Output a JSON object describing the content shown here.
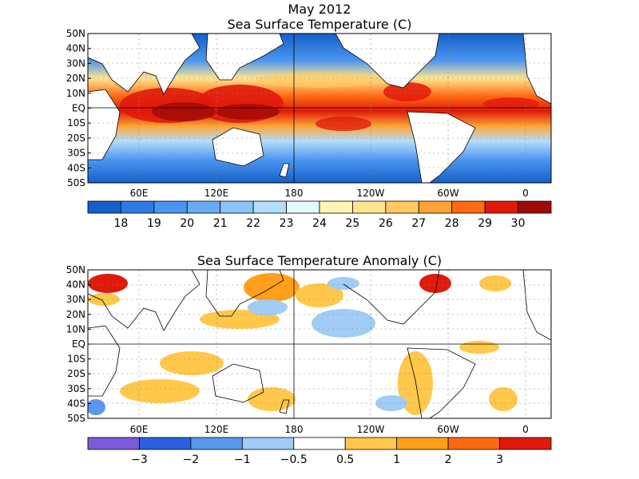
{
  "header": {
    "date": "May 2012"
  },
  "maps": [
    {
      "title": "Sea Surface Temperature (C)",
      "lat_labels": [
        "50N",
        "40N",
        "30N",
        "20N",
        "10N",
        "EQ",
        "10S",
        "20S",
        "30S",
        "40S",
        "50S"
      ],
      "lon_labels": [
        "60E",
        "120E",
        "180",
        "120W",
        "60W",
        "0"
      ],
      "colorbar": {
        "colors": [
          "#1560c8",
          "#2f7be6",
          "#4a95f0",
          "#6aabf5",
          "#8cc3f9",
          "#b4dcfc",
          "#e6f8ff",
          "#fff6b4",
          "#ffe590",
          "#ffc860",
          "#ffa432",
          "#ff6a12",
          "#e01a0a",
          "#a00a06"
        ],
        "labels": [
          "18",
          "19",
          "20",
          "21",
          "22",
          "23",
          "24",
          "25",
          "26",
          "27",
          "28",
          "29",
          "30"
        ]
      }
    },
    {
      "title": "Sea Surface Temperature Anomaly (C)",
      "lat_labels": [
        "50N",
        "40N",
        "30N",
        "20N",
        "10N",
        "EQ",
        "10S",
        "20S",
        "30S",
        "40S",
        "50S"
      ],
      "lon_labels": [
        "60E",
        "120E",
        "180",
        "120W",
        "60W",
        "0"
      ],
      "colorbar": {
        "colors": [
          "#7a5ad8",
          "#2a60e0",
          "#5a98ee",
          "#a0ccf6",
          "#ffffff",
          "#ffc84a",
          "#ffa018",
          "#ff6a10",
          "#e01a0a"
        ],
        "labels": [
          "−3",
          "−2",
          "−1",
          "−0.5",
          "0.5",
          "1",
          "2",
          "3"
        ]
      }
    }
  ]
}
